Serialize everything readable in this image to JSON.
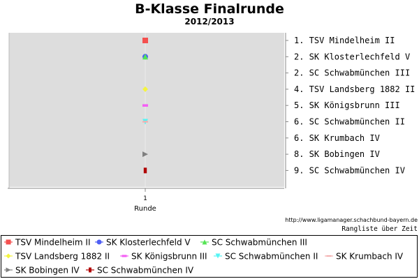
{
  "chart_data": {
    "type": "scatter",
    "title": "B-Klasse Finalrunde",
    "subtitle": "2012/2013",
    "xlabel": "Runde",
    "x_categories": [
      "1"
    ],
    "y_axis": "rank (inverted, 1 at top)",
    "ylim": [
      1,
      9
    ],
    "grid": false,
    "legend_position": "bottom",
    "source": "http://www.ligamanager.schachbund-bayern.de",
    "caption": "Rangliste über Zeit",
    "right_labels": [
      "1. TSV Mindelheim II",
      "2. SK Klosterlechfeld V",
      "2. SC Schwabmünchen III",
      "4. TSV Landsberg 1882 II",
      "5. SK Königsbrunn III",
      "6. SC Schwabmünchen II",
      "6. SK Krumbach IV",
      "8. SK Bobingen IV",
      "9. SC Schwabmünchen IV"
    ],
    "series": [
      {
        "name": "TSV Mindelheim II",
        "x": [
          "1"
        ],
        "ranks": [
          1
        ],
        "color": "#f4504f",
        "marker": "square"
      },
      {
        "name": "SK Klosterlechfeld V",
        "x": [
          "1"
        ],
        "ranks": [
          2
        ],
        "color": "#4f5ff4",
        "marker": "circle"
      },
      {
        "name": "SC Schwabmünchen III",
        "x": [
          "1"
        ],
        "ranks": [
          2
        ],
        "color": "#55e455",
        "marker": "triangle-up"
      },
      {
        "name": "TSV Landsberg 1882 II",
        "x": [
          "1"
        ],
        "ranks": [
          4
        ],
        "color": "#f4f43f",
        "marker": "diamond"
      },
      {
        "name": "SK Königsbrunn III",
        "x": [
          "1"
        ],
        "ranks": [
          5
        ],
        "color": "#f45ff4",
        "marker": "bar"
      },
      {
        "name": "SC Schwabmünchen II",
        "x": [
          "1"
        ],
        "ranks": [
          6
        ],
        "color": "#55f4f4",
        "marker": "triangle-down"
      },
      {
        "name": "SK Krumbach IV",
        "x": [
          "1"
        ],
        "ranks": [
          6
        ],
        "color": "#f4b0b0",
        "marker": "dash"
      },
      {
        "name": "SK Bobingen IV",
        "x": [
          "1"
        ],
        "ranks": [
          8
        ],
        "color": "#808080",
        "marker": "triangle-right"
      },
      {
        "name": "SC Schwabmünchen IV",
        "x": [
          "1"
        ],
        "ranks": [
          9
        ],
        "color": "#b00000",
        "marker": "bar-vertical"
      }
    ]
  }
}
